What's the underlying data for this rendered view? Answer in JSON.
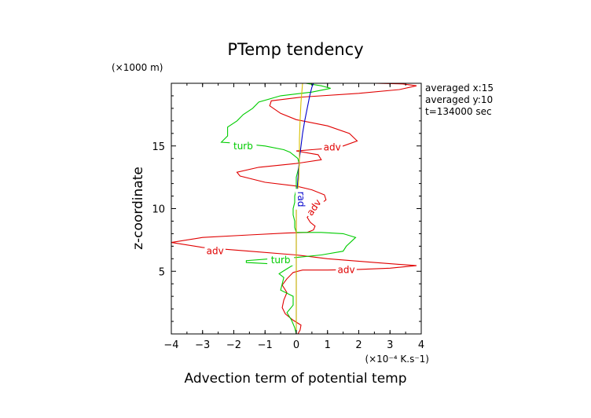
{
  "chart_data": {
    "type": "line",
    "title": "PTemp tendency",
    "xlabel": "Advection term of potential temp",
    "ylabel": "z-coordinate",
    "x_unit": "(×10⁻⁴ K.s⁻1)",
    "y_unit": "(×1000 m)",
    "xlim": [
      -4,
      4
    ],
    "ylim": [
      0,
      20
    ],
    "x_ticks": [
      -4,
      -3,
      -2,
      -1,
      0,
      1,
      2,
      3,
      4
    ],
    "y_ticks": [
      5,
      10,
      15
    ],
    "grid": false,
    "info_lines": [
      "averaged  x:15",
      "averaged  y:10",
      "t=134000 sec"
    ],
    "series": [
      {
        "name": "adv",
        "color": "#e00000",
        "points": [
          [
            0.05,
            0
          ],
          [
            0.12,
            0.3
          ],
          [
            0.15,
            0.7
          ],
          [
            -0.1,
            1.1
          ],
          [
            -0.35,
            1.6
          ],
          [
            -0.45,
            2.1
          ],
          [
            -0.4,
            2.7
          ],
          [
            -0.3,
            3.3
          ],
          [
            -0.45,
            3.9
          ],
          [
            -0.3,
            4.4
          ],
          [
            -0.1,
            4.9
          ],
          [
            0.2,
            5.1
          ],
          [
            1.0,
            5.1
          ],
          [
            2.0,
            5.15
          ],
          [
            3.0,
            5.25
          ],
          [
            3.85,
            5.45
          ],
          [
            2.5,
            5.7
          ],
          [
            1.0,
            6.0
          ],
          [
            0.0,
            6.3
          ],
          [
            -1.5,
            6.6
          ],
          [
            -3.0,
            6.9
          ],
          [
            -4.0,
            7.3
          ],
          [
            -3.0,
            7.7
          ],
          [
            -1.5,
            7.9
          ],
          [
            -0.3,
            8.05
          ],
          [
            0.35,
            8.1
          ],
          [
            0.55,
            8.3
          ],
          [
            0.6,
            8.6
          ],
          [
            0.45,
            8.9
          ],
          [
            0.35,
            9.3
          ],
          [
            0.5,
            9.8
          ],
          [
            0.75,
            10.3
          ],
          [
            0.95,
            10.7
          ],
          [
            0.9,
            11.1
          ],
          [
            0.5,
            11.5
          ],
          [
            0.0,
            11.8
          ],
          [
            -1.0,
            12.1
          ],
          [
            -1.8,
            12.6
          ],
          [
            -1.9,
            12.9
          ],
          [
            -1.2,
            13.3
          ],
          [
            0.0,
            13.6
          ],
          [
            0.8,
            13.9
          ],
          [
            0.7,
            14.3
          ],
          [
            0.0,
            14.6
          ],
          [
            0.5,
            14.7
          ],
          [
            1.0,
            14.8
          ],
          [
            1.5,
            15.0
          ],
          [
            1.95,
            15.4
          ],
          [
            1.7,
            16.0
          ],
          [
            1.0,
            16.6
          ],
          [
            0.0,
            17.1
          ],
          [
            -0.5,
            17.6
          ],
          [
            -0.85,
            18.2
          ],
          [
            -0.8,
            18.6
          ],
          [
            0.2,
            18.9
          ],
          [
            2.0,
            19.2
          ],
          [
            3.3,
            19.5
          ],
          [
            3.85,
            19.8
          ],
          [
            3.4,
            19.95
          ],
          [
            2.5,
            20.0
          ]
        ]
      },
      {
        "name": "turb",
        "color": "#00cc00",
        "points": [
          [
            0.0,
            0
          ],
          [
            -0.05,
            0.5
          ],
          [
            -0.15,
            1.1
          ],
          [
            -0.3,
            1.7
          ],
          [
            -0.1,
            2.3
          ],
          [
            -0.1,
            3.0
          ],
          [
            -0.5,
            3.5
          ],
          [
            -0.45,
            4.0
          ],
          [
            -0.4,
            4.5
          ],
          [
            -0.55,
            4.8
          ],
          [
            -0.3,
            5.2
          ],
          [
            -0.1,
            5.5
          ],
          [
            -1.6,
            5.7
          ],
          [
            -1.6,
            5.85
          ],
          [
            -0.8,
            6.0
          ],
          [
            0.0,
            6.1
          ],
          [
            0.8,
            6.3
          ],
          [
            1.5,
            6.6
          ],
          [
            1.6,
            7.0
          ],
          [
            1.9,
            7.7
          ],
          [
            1.5,
            8.0
          ],
          [
            0.8,
            8.1
          ],
          [
            0.0,
            8.1
          ],
          [
            -0.05,
            8.5
          ],
          [
            -0.05,
            9.0
          ],
          [
            -0.1,
            9.5
          ],
          [
            -0.1,
            10.0
          ],
          [
            -0.05,
            10.5
          ],
          [
            -0.05,
            11.0
          ],
          [
            0.0,
            11.5
          ],
          [
            0.0,
            12.0
          ],
          [
            0.0,
            12.5
          ],
          [
            0.05,
            13.0
          ],
          [
            0.1,
            13.5
          ],
          [
            0.05,
            14.0
          ],
          [
            -0.2,
            14.5
          ],
          [
            -0.4,
            14.7
          ],
          [
            -1.0,
            15.0
          ],
          [
            -1.8,
            15.2
          ],
          [
            -2.4,
            15.3
          ],
          [
            -2.2,
            15.8
          ],
          [
            -2.2,
            16.5
          ],
          [
            -1.9,
            17.0
          ],
          [
            -1.7,
            17.5
          ],
          [
            -1.4,
            18.0
          ],
          [
            -1.2,
            18.5
          ],
          [
            -0.5,
            19.0
          ],
          [
            0.5,
            19.3
          ],
          [
            1.1,
            19.6
          ],
          [
            0.8,
            19.8
          ],
          [
            0.3,
            20.0
          ]
        ]
      },
      {
        "name": "rad",
        "color": "#0000cc",
        "points": [
          [
            0.0,
            0
          ],
          [
            0.0,
            2
          ],
          [
            0.0,
            4
          ],
          [
            0.0,
            6
          ],
          [
            0.0,
            8
          ],
          [
            0.0,
            10
          ],
          [
            0.02,
            11
          ],
          [
            0.04,
            12
          ],
          [
            0.07,
            13
          ],
          [
            0.1,
            14
          ],
          [
            0.15,
            15
          ],
          [
            0.2,
            16
          ],
          [
            0.27,
            17
          ],
          [
            0.35,
            18
          ],
          [
            0.43,
            19
          ],
          [
            0.5,
            19.7
          ],
          [
            0.55,
            20.0
          ]
        ]
      },
      {
        "name": "",
        "color": "#d8c000",
        "points": [
          [
            0.0,
            0
          ],
          [
            0.0,
            3
          ],
          [
            0.0,
            5
          ],
          [
            0.0,
            7
          ],
          [
            0.0,
            9
          ],
          [
            0.0,
            10.5
          ],
          [
            0.05,
            11.5
          ],
          [
            0.08,
            12.5
          ],
          [
            0.1,
            14
          ],
          [
            0.1,
            15.5
          ],
          [
            0.12,
            17
          ],
          [
            0.15,
            18.5
          ],
          [
            0.2,
            20.0
          ]
        ]
      }
    ],
    "curve_labels": [
      {
        "text": "turb",
        "series": "turb",
        "x": -1.7,
        "y": 15.0
      },
      {
        "text": "adv",
        "series": "adv",
        "x": 1.15,
        "y": 14.9
      },
      {
        "text": "rad",
        "series": "rad",
        "x": 0.05,
        "y": 11.0,
        "rotate": 90
      },
      {
        "text": "adv",
        "series": "adv",
        "x": 0.65,
        "y": 10.2,
        "rotate": -55
      },
      {
        "text": "adv",
        "series": "adv",
        "x": -2.6,
        "y": 6.6
      },
      {
        "text": "turb",
        "series": "turb",
        "x": -0.5,
        "y": 5.9
      },
      {
        "text": "adv",
        "series": "adv",
        "x": 1.6,
        "y": 5.1
      }
    ]
  }
}
